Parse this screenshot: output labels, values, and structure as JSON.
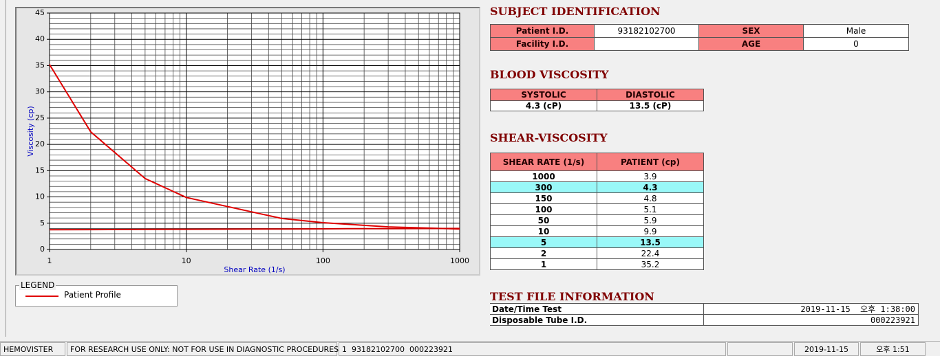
{
  "chart_data": {
    "type": "line",
    "x_axis_label": "Shear Rate (1/s)",
    "y_axis_label": "Viscosity (cp)",
    "xscale": "log",
    "x": [
      1000,
      300,
      150,
      100,
      50,
      10,
      5,
      2,
      1
    ],
    "series": [
      {
        "name": "Patient Profile",
        "color": "#e00000",
        "values": [
          3.9,
          4.3,
          4.8,
          5.1,
          5.9,
          9.9,
          13.5,
          22.4,
          35.2
        ]
      },
      {
        "color": "#d00000",
        "values": [
          4.0,
          3.97,
          3.95,
          3.93,
          3.9,
          3.85,
          3.82,
          3.78,
          3.75
        ]
      }
    ],
    "xlim": [
      1,
      1000
    ],
    "ylim": [
      0,
      45
    ],
    "xticks": [
      1,
      10,
      100,
      1000
    ],
    "yticks": [
      0,
      5,
      10,
      15,
      20,
      25,
      30,
      35,
      40,
      45
    ],
    "xminor": [
      2,
      3,
      4,
      5,
      6,
      7,
      8,
      9,
      20,
      30,
      40,
      50,
      60,
      70,
      80,
      90,
      200,
      300,
      400,
      500,
      600,
      700,
      800,
      900
    ],
    "yminor": [
      1,
      2,
      3,
      4,
      6,
      7,
      8,
      9,
      11,
      12,
      13,
      14,
      16,
      17,
      18,
      19,
      21,
      22,
      23,
      24,
      26,
      27,
      28,
      29,
      31,
      32,
      33,
      34,
      36,
      37,
      38,
      39,
      41,
      42,
      43,
      44
    ],
    "grid": true
  },
  "legend": {
    "title": "LEGEND"
  },
  "subject": {
    "title": "SUBJECT IDENTIFICATION",
    "rows": [
      [
        "Patient I.D.",
        "93182102700",
        "SEX",
        "Male"
      ],
      [
        "Facility I.D.",
        null,
        "AGE",
        "0"
      ]
    ]
  },
  "blood": {
    "title": "BLOOD VISCOSITY",
    "headers": [
      "SYSTOLIC",
      "DIASTOLIC"
    ],
    "values": [
      "4.3 (cP)",
      "13.5 (cP)"
    ]
  },
  "shear": {
    "title": "SHEAR-VISCOSITY",
    "headers": [
      "SHEAR RATE (1/s)",
      "PATIENT (cp)"
    ],
    "highlight_rows": [
      1,
      6
    ]
  },
  "test_file": {
    "title": "TEST FILE INFORMATION",
    "rows": [
      [
        "Date/Time Test",
        "2019-11-15  오후 1:38:00"
      ],
      [
        "Disposable Tube I.D.",
        "000223921"
      ]
    ]
  },
  "status_bar": [
    "HEMOVISTER",
    "FOR RESEARCH USE ONLY: NOT FOR USE IN DIAGNOSTIC PROCEDURES",
    "1  93182102700  000223921",
    null,
    "2019-11-15",
    "오후 1:51"
  ]
}
